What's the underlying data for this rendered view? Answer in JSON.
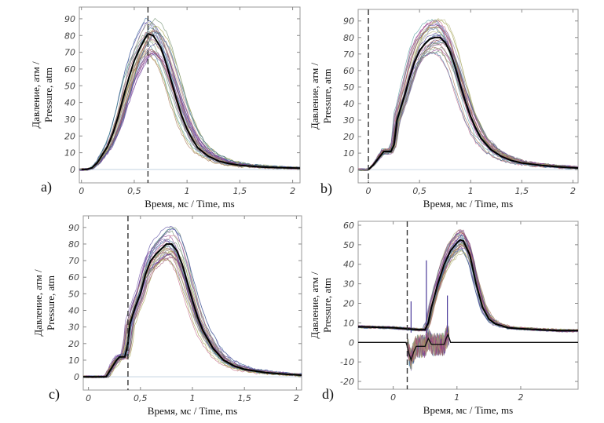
{
  "chart_data": [
    {
      "id": "a",
      "type": "line",
      "panel_label": "a)",
      "xlabel": "Время, мс / Time, ms",
      "ylabel_line1": "Давление, атм /",
      "ylabel_line2": "Pressure, atm",
      "xlim": [
        -0.02,
        2.07
      ],
      "ylim": [
        -8,
        97
      ],
      "xticks": [
        0,
        0.5,
        1,
        1.5,
        2
      ],
      "xtick_labels": [
        "0",
        "0,5",
        "1",
        "1,5",
        "2"
      ],
      "yticks": [
        0,
        10,
        20,
        30,
        40,
        50,
        60,
        70,
        80,
        90
      ],
      "ytick_labels": [
        "0",
        "10",
        "20",
        "30",
        "40",
        "50",
        "60",
        "70",
        "80",
        "90"
      ],
      "marker_line_x": 0.63,
      "grid": false,
      "mean_curve": {
        "x": [
          0,
          0.05,
          0.1,
          0.15,
          0.2,
          0.25,
          0.3,
          0.35,
          0.4,
          0.45,
          0.5,
          0.55,
          0.6,
          0.63,
          0.68,
          0.75,
          0.8,
          0.85,
          0.9,
          0.95,
          1.0,
          1.05,
          1.1,
          1.2,
          1.3,
          1.4,
          1.5,
          1.7,
          1.9,
          2.07
        ],
        "y": [
          0,
          0,
          1,
          4,
          9,
          14,
          22,
          32,
          44,
          55,
          65,
          72,
          78,
          81,
          80,
          73,
          64,
          53,
          42,
          32,
          24,
          18,
          13,
          8,
          5,
          3.5,
          2.5,
          1.5,
          1,
          0.8
        ]
      },
      "peak_range": [
        68,
        90
      ],
      "n_traces": 30
    },
    {
      "id": "b",
      "type": "line",
      "panel_label": "b)",
      "xlabel": "Время, мс / Time, ms",
      "ylabel_line1": "Давление, атм /",
      "ylabel_line2": "Pressure, atm",
      "xlim": [
        -0.1,
        2.05
      ],
      "ylim": [
        -8,
        97
      ],
      "xticks": [
        0,
        0.5,
        1,
        1.5,
        2
      ],
      "xtick_labels": [
        "0",
        "0,5",
        "1",
        "1,5",
        "2"
      ],
      "yticks": [
        0,
        10,
        20,
        30,
        40,
        50,
        60,
        70,
        80,
        90
      ],
      "ytick_labels": [
        "0",
        "10",
        "20",
        "30",
        "40",
        "50",
        "60",
        "70",
        "80",
        "90"
      ],
      "marker_line_x": 0.0,
      "grid": false,
      "mean_curve": {
        "x": [
          0,
          0.05,
          0.1,
          0.15,
          0.18,
          0.22,
          0.25,
          0.28,
          0.32,
          0.36,
          0.4,
          0.45,
          0.5,
          0.55,
          0.6,
          0.65,
          0.7,
          0.75,
          0.8,
          0.85,
          0.9,
          0.95,
          1.0,
          1.05,
          1.1,
          1.2,
          1.3,
          1.4,
          1.5,
          1.7,
          1.9,
          2.05
        ],
        "y": [
          0,
          3,
          7,
          11,
          11,
          11,
          15,
          30,
          38,
          46,
          55,
          65,
          72,
          76,
          79,
          80,
          80,
          77,
          71,
          62,
          51,
          41,
          32,
          25,
          19,
          12,
          8,
          5.5,
          4,
          2.5,
          1.5,
          1
        ]
      },
      "peak_range": [
        70,
        91
      ],
      "n_traces": 30
    },
    {
      "id": "c",
      "type": "line",
      "panel_label": "c)",
      "xlabel": "Время, мс / Time, ms",
      "ylabel_line1": "Давление, атм /",
      "ylabel_line2": "Pressure, atm",
      "xlim": [
        -0.05,
        2.05
      ],
      "ylim": [
        -8,
        97
      ],
      "xticks": [
        0,
        0.5,
        1,
        1.5,
        2
      ],
      "xtick_labels": [
        "0",
        "0,5",
        "1",
        "1,5",
        "2"
      ],
      "yticks": [
        0,
        10,
        20,
        30,
        40,
        50,
        60,
        70,
        80,
        90
      ],
      "ytick_labels": [
        "0",
        "10",
        "20",
        "30",
        "40",
        "50",
        "60",
        "70",
        "80",
        "90"
      ],
      "marker_line_x": 0.38,
      "grid": false,
      "mean_curve": {
        "x": [
          -0.05,
          0,
          0.1,
          0.17,
          0.22,
          0.27,
          0.3,
          0.35,
          0.38,
          0.4,
          0.45,
          0.5,
          0.55,
          0.6,
          0.65,
          0.7,
          0.75,
          0.8,
          0.85,
          0.9,
          0.95,
          1.0,
          1.05,
          1.1,
          1.2,
          1.3,
          1.4,
          1.5,
          1.7,
          1.9,
          2.05
        ],
        "y": [
          0,
          0,
          0,
          0,
          5,
          10,
          12,
          12,
          20,
          32,
          42,
          50,
          62,
          70,
          74,
          77,
          80,
          80,
          76,
          68,
          57,
          46,
          36,
          28,
          17,
          10,
          6.5,
          4.5,
          2.5,
          1.5,
          1
        ]
      },
      "peak_range": [
        70,
        91
      ],
      "n_traces": 30
    },
    {
      "id": "d",
      "type": "line",
      "panel_label": "d)",
      "xlabel": "Время, мс / Time, ms",
      "ylabel_line1": "Давление, атм /",
      "ylabel_line2": "Pressure, atm",
      "xlim": [
        -0.55,
        2.9
      ],
      "ylim": [
        -24,
        62
      ],
      "xticks": [
        0,
        1,
        2
      ],
      "xtick_labels": [
        "0",
        "1",
        "2"
      ],
      "yticks": [
        -20,
        -10,
        0,
        10,
        20,
        30,
        40,
        50,
        60
      ],
      "ytick_labels": [
        "-20",
        "-10",
        "0",
        "10",
        "20",
        "30",
        "40",
        "50",
        "60"
      ],
      "marker_line_x": 0.22,
      "grid": false,
      "mean_curve": {
        "x": [
          -0.55,
          0,
          0.2,
          0.4,
          0.5,
          0.55,
          0.6,
          0.7,
          0.8,
          0.9,
          1.0,
          1.05,
          1.1,
          1.2,
          1.3,
          1.4,
          1.5,
          1.6,
          1.8,
          2.0,
          2.3,
          2.6,
          2.9
        ],
        "y": [
          8,
          7.5,
          7,
          6.5,
          6.5,
          10,
          18,
          30,
          40,
          47,
          51,
          52.5,
          52,
          45,
          30,
          18,
          12,
          9.5,
          7.5,
          7,
          6.5,
          6,
          6
        ]
      },
      "difference_curve": {
        "x": [
          -0.55,
          0.2,
          0.22,
          0.25,
          0.28,
          0.32,
          0.36,
          0.4,
          0.45,
          0.5,
          0.55,
          0.6,
          0.65,
          0.7,
          0.75,
          0.8,
          0.83,
          0.86,
          0.9,
          2.9
        ],
        "y": [
          0,
          0,
          -2,
          -6,
          -9,
          -5,
          -2,
          -2,
          -2,
          -2,
          2,
          -1,
          -1,
          -1,
          -1,
          -1,
          2,
          4,
          0,
          0
        ]
      },
      "spikes": [
        {
          "x": 0.28,
          "y": 21
        },
        {
          "x": 0.52,
          "y": 42
        },
        {
          "x": 0.85,
          "y": 24
        }
      ],
      "peak_range": [
        45,
        58
      ],
      "n_traces": 30
    }
  ],
  "trace_palette": [
    "#8b3a8b",
    "#4a3a9a",
    "#9a4a6a",
    "#6a8a6a",
    "#3a6a9a",
    "#b0b07a",
    "#7a7a9a",
    "#c06080",
    "#4a9a9a",
    "#9a9a3a",
    "#6a4aa0",
    "#a06a4a"
  ]
}
